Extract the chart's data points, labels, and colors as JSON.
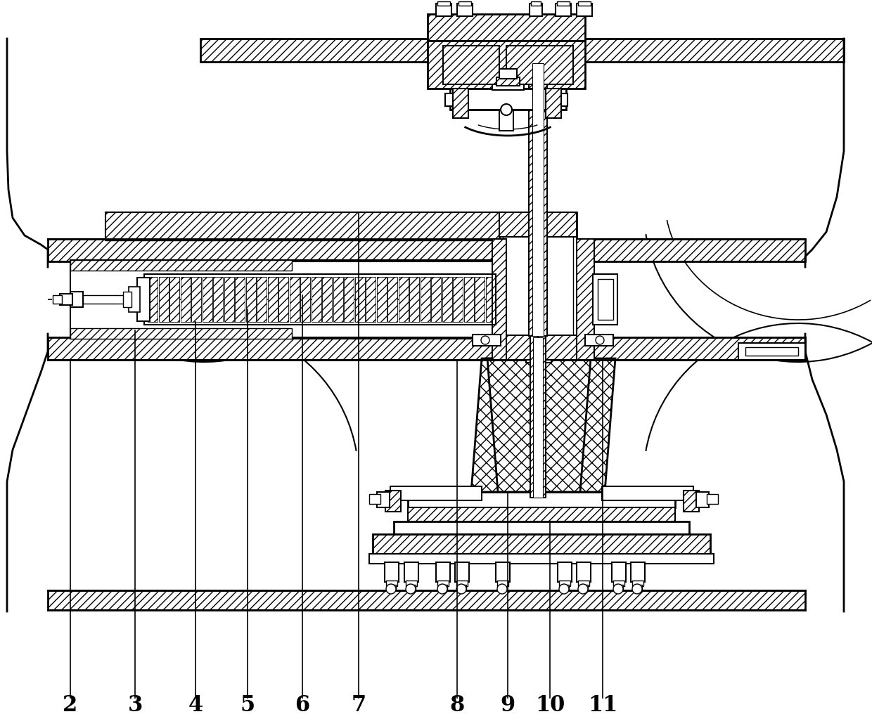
{
  "background_color": "#ffffff",
  "line_color": "#000000",
  "labels": [
    "2",
    "3",
    "4",
    "5",
    "6",
    "7",
    "8",
    "9",
    "10",
    "11"
  ],
  "label_x_img": [
    100,
    192,
    278,
    352,
    430,
    510,
    650,
    722,
    782,
    857
  ],
  "label_y_img": [
    1003,
    1003,
    1003,
    1003,
    1003,
    1003,
    1003,
    1003,
    1003,
    1003
  ],
  "label_fontsize": 22,
  "fig_width": 12.4,
  "fig_height": 10.33,
  "dpi": 100
}
